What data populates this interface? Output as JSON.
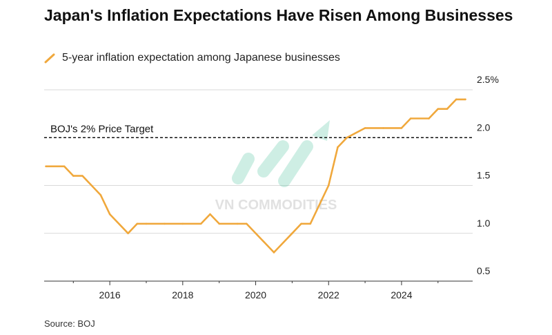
{
  "chart_data": {
    "type": "line",
    "title": "Japan's Inflation Expectations Have Risen Among Businesses",
    "legend": [
      "5-year inflation expectation among Japanese businesses"
    ],
    "source": "Source: BOJ",
    "series": [
      {
        "name": "5-year inflation expectation among Japanese businesses",
        "color": "#f0a83c",
        "points": [
          [
            2014.25,
            1.7
          ],
          [
            2014.75,
            1.7
          ],
          [
            2015.0,
            1.6
          ],
          [
            2015.25,
            1.6
          ],
          [
            2015.75,
            1.4
          ],
          [
            2016.0,
            1.2
          ],
          [
            2016.5,
            1.0
          ],
          [
            2016.75,
            1.1
          ],
          [
            2017.0,
            1.1
          ],
          [
            2017.5,
            1.1
          ],
          [
            2018.0,
            1.1
          ],
          [
            2018.5,
            1.1
          ],
          [
            2018.75,
            1.2
          ],
          [
            2019.0,
            1.1
          ],
          [
            2019.5,
            1.1
          ],
          [
            2019.75,
            1.1
          ],
          [
            2020.5,
            0.8
          ],
          [
            2021.0,
            1.0
          ],
          [
            2021.25,
            1.1
          ],
          [
            2021.5,
            1.1
          ],
          [
            2022.0,
            1.5
          ],
          [
            2022.25,
            1.9
          ],
          [
            2022.5,
            2.0
          ],
          [
            2023.0,
            2.1
          ],
          [
            2023.5,
            2.1
          ],
          [
            2024.0,
            2.1
          ],
          [
            2024.25,
            2.2
          ],
          [
            2024.75,
            2.2
          ],
          [
            2025.0,
            2.3
          ],
          [
            2025.25,
            2.3
          ],
          [
            2025.5,
            2.4
          ],
          [
            2025.75,
            2.4
          ]
        ]
      }
    ],
    "reference_line": {
      "label": "BOJ's 2% Price Target",
      "value": 2.0
    },
    "x_ticks": [
      2016,
      2018,
      2020,
      2022,
      2024
    ],
    "x_tick_labels": [
      "2016",
      "2018",
      "2020",
      "2022",
      "2024"
    ],
    "y_ticks": [
      2.5,
      2.0,
      1.5,
      1.0,
      0.5
    ],
    "y_tick_labels": [
      "2.5%",
      "2.0",
      "1.5",
      "1.0",
      "0.5"
    ],
    "xlim": [
      2014.2,
      2025.95
    ],
    "ylim": [
      0.5,
      2.5
    ],
    "watermark": "VN COMMODITIES"
  }
}
